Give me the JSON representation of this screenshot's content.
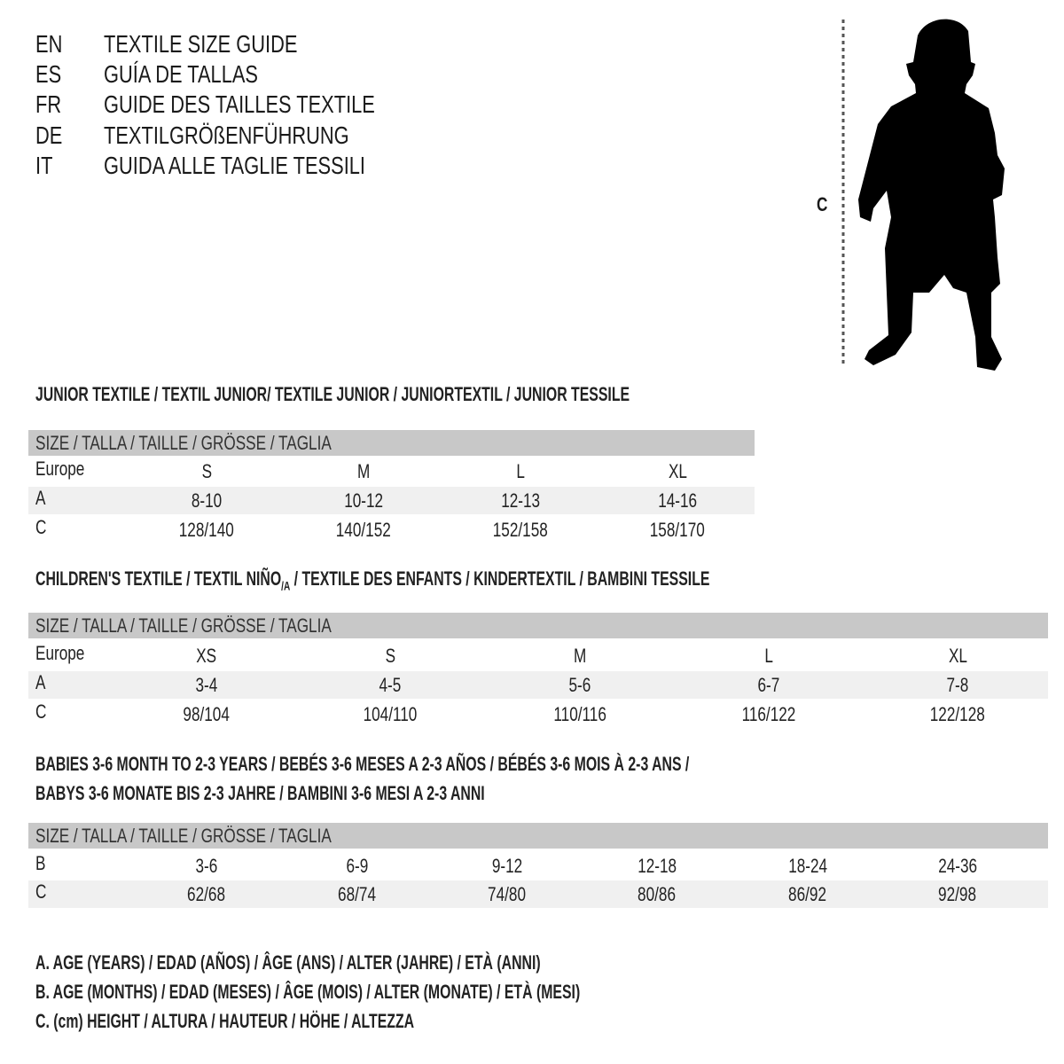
{
  "languages": [
    {
      "code": "EN",
      "title": "TEXTILE SIZE GUIDE"
    },
    {
      "code": "ES",
      "title": "GUÍA DE TALLAS"
    },
    {
      "code": "FR",
      "title": "GUIDE DES TAILLES TEXTILE"
    },
    {
      "code": "DE",
      "title": "TEXTILGRÖßENFÜHRUNG"
    },
    {
      "code": "IT",
      "title": "GUIDA ALLE TAGLIE TESSILI"
    }
  ],
  "figure": {
    "measure_label": "C",
    "icon": "child-silhouette"
  },
  "colors": {
    "header_bg": "#c8c8c8",
    "row_shade": "#f0f0f0"
  },
  "junior": {
    "title": "JUNIOR TEXTILE / TEXTIL JUNIOR/ TEXTILE JUNIOR / JUNIORTEXTIL / JUNIOR TESSILE",
    "header": "SIZE / TALLA / TAILLE / GRÖSSE / TAGLIA",
    "rows": [
      {
        "label": "Europe",
        "values": [
          "S",
          "M",
          "L",
          "XL"
        ]
      },
      {
        "label": "A",
        "values": [
          "8-10",
          "10-12",
          "12-13",
          "14-16"
        ]
      },
      {
        "label": "C",
        "values": [
          "128/140",
          "140/152",
          "152/158",
          "158/170"
        ]
      }
    ]
  },
  "children": {
    "title_pre": "CHILDREN'S TEXTILE / TEXTIL NIÑO",
    "title_sub": "/A",
    "title_post": " / TEXTILE DES ENFANTS / KINDERTEXTIL / BAMBINI TESSILE",
    "header": "SIZE / TALLA / TAILLE / GRÖSSE / TAGLIA",
    "rows": [
      {
        "label": "Europe",
        "values": [
          "XS",
          "S",
          "M",
          "L",
          "XL"
        ]
      },
      {
        "label": "A",
        "values": [
          "3-4",
          "4-5",
          "5-6",
          "6-7",
          "7-8"
        ]
      },
      {
        "label": "C",
        "values": [
          "98/104",
          "104/110",
          "110/116",
          "116/122",
          "122/128"
        ]
      }
    ]
  },
  "babies": {
    "title_line1": "BABIES 3-6 MONTH TO 2-3 YEARS / BEBÉS 3-6 MESES A 2-3 AÑOS / BÉBÉS 3-6 MOIS À 2-3 ANS /",
    "title_line2": "BABYS 3-6 MONATE BIS 2-3 JAHRE / BAMBINI 3-6 MESI A 2-3 ANNI",
    "header": "SIZE / TALLA / TAILLE / GRÖSSE / TAGLIA",
    "rows": [
      {
        "label": "B",
        "values": [
          "3-6",
          "6-9",
          "9-12",
          "12-18",
          "18-24",
          "24-36"
        ]
      },
      {
        "label": "C",
        "values": [
          "62/68",
          "68/74",
          "74/80",
          "80/86",
          "86/92",
          "92/98"
        ]
      }
    ]
  },
  "legend": [
    "A. AGE (YEARS) / EDAD (AÑOS) / ÂGE (ANS) / ALTER (JAHRE) / ETÀ (ANNI)",
    "B. AGE (MONTHS) / EDAD (MESES) / ÂGE (MOIS) / ALTER (MONATE) / ETÀ (MESI)",
    "C. (cm) HEIGHT / ALTURA / HAUTEUR / HÖHE / ALTEZZA"
  ]
}
